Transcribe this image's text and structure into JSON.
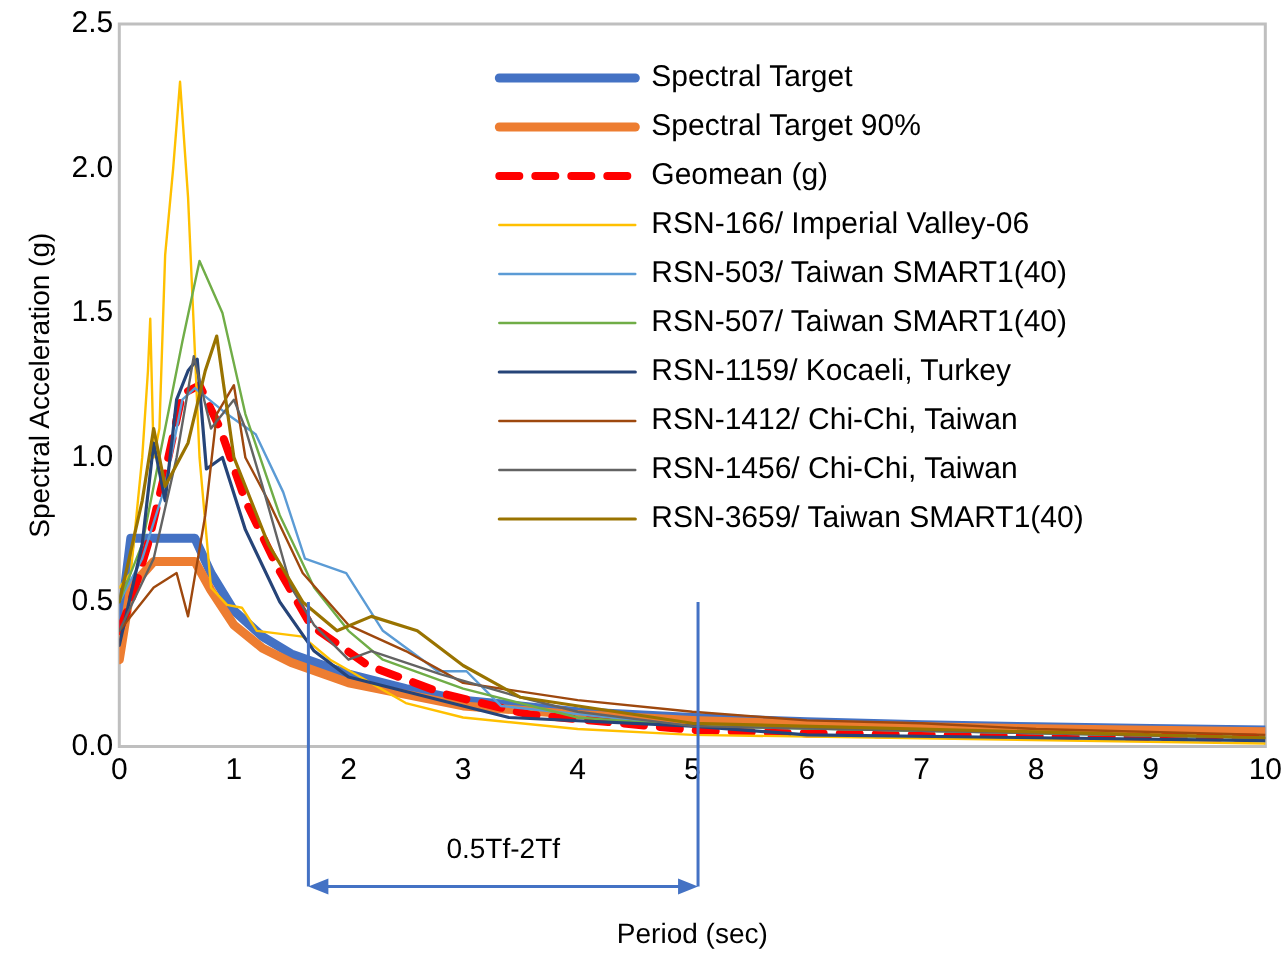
{
  "chart_data": {
    "type": "line",
    "xlabel": "Period (sec)",
    "ylabel": "Spectral Acceleration (g)",
    "xlim": [
      0,
      10
    ],
    "xticks": [
      0,
      1,
      2,
      3,
      4,
      5,
      6,
      7,
      8,
      9,
      10
    ],
    "ylim": [
      0,
      2.5
    ],
    "yticks": [
      {
        "value": 0,
        "label": "0.0"
      },
      {
        "value": 0.5,
        "label": "0.5"
      },
      {
        "value": 1,
        "label": "1.0"
      },
      {
        "value": 1.5,
        "label": "1.5"
      },
      {
        "value": 2,
        "label": "2.0"
      },
      {
        "value": 2.5,
        "label": "2.5"
      }
    ],
    "legend": "top right",
    "marker": "none",
    "ref_lines": [
      {
        "axis": "x",
        "value": 1.65,
        "color": "#4472c4"
      },
      {
        "axis": "x",
        "value": 5.05,
        "color": "#4472c4"
      }
    ],
    "annotations": [
      "0.5Tf-2Tf"
    ],
    "series": [
      {
        "name": "Spectral Target",
        "color": "#4472c4",
        "x": [
          0,
          0.1,
          0.66,
          0.8,
          1.0,
          1.25,
          1.5,
          2,
          2.5,
          3,
          4,
          5,
          6,
          7,
          8,
          9,
          10
        ],
        "values": [
          0.4,
          0.72,
          0.72,
          0.6,
          0.47,
          0.38,
          0.32,
          0.25,
          0.2,
          0.16,
          0.12,
          0.1,
          0.085,
          0.075,
          0.068,
          0.062,
          0.057
        ]
      },
      {
        "name": "Spectral Target 90%",
        "color": "#ed7d31",
        "x": [
          0,
          0.1,
          0.3,
          0.66,
          0.8,
          1.0,
          1.25,
          1.5,
          2,
          2.5,
          3,
          4,
          5,
          6,
          7,
          8,
          9,
          10
        ],
        "values": [
          0.3,
          0.55,
          0.64,
          0.64,
          0.54,
          0.42,
          0.34,
          0.29,
          0.22,
          0.18,
          0.14,
          0.11,
          0.09,
          0.077,
          0.068,
          0.061,
          0.056,
          0.051
        ]
      },
      {
        "name": "Geomean (g)",
        "color": "#ff0000",
        "line_style": "dashed",
        "x": [
          0,
          0.1,
          0.25,
          0.4,
          0.55,
          0.7,
          0.88,
          1.1,
          1.38,
          1.67,
          2.17,
          2.85,
          3.58,
          5.05,
          6,
          8,
          10
        ],
        "values": [
          0.4,
          0.5,
          0.7,
          0.95,
          1.22,
          1.25,
          1.1,
          0.85,
          0.62,
          0.42,
          0.28,
          0.18,
          0.11,
          0.055,
          0.045,
          0.035,
          0.03
        ]
      },
      {
        "name": "RSN-166/ Imperial Valley-06",
        "color": "#ffc000",
        "x": [
          0,
          0.1,
          0.2,
          0.25,
          0.27,
          0.3,
          0.35,
          0.4,
          0.47,
          0.53,
          0.6,
          0.7,
          0.8,
          0.94,
          1.07,
          1.2,
          1.6,
          1.84,
          2.5,
          3,
          4,
          5,
          10
        ],
        "values": [
          0.55,
          0.6,
          1.0,
          1.3,
          1.48,
          1.0,
          1.1,
          1.7,
          2.0,
          2.3,
          1.9,
          1.0,
          0.55,
          0.49,
          0.48,
          0.4,
          0.38,
          0.3,
          0.15,
          0.1,
          0.06,
          0.04,
          0.01
        ]
      },
      {
        "name": "RSN-503/ Taiwan SMART1(40)",
        "color": "#5b9bd5",
        "x": [
          0,
          0.2,
          0.4,
          0.55,
          0.66,
          0.94,
          1.19,
          1.43,
          1.62,
          1.98,
          2.3,
          2.78,
          3.03,
          3.33,
          5,
          10
        ],
        "values": [
          0.5,
          0.65,
          0.9,
          1.2,
          1.24,
          1.15,
          1.08,
          0.88,
          0.65,
          0.6,
          0.4,
          0.26,
          0.26,
          0.14,
          0.07,
          0.03
        ]
      },
      {
        "name": "RSN-507/ Taiwan SMART1(40)",
        "color": "#70ad47",
        "x": [
          0,
          0.2,
          0.4,
          0.55,
          0.7,
          0.9,
          1.1,
          1.4,
          1.7,
          2,
          2.3,
          3,
          4,
          5,
          10
        ],
        "values": [
          0.5,
          0.7,
          1.1,
          1.4,
          1.68,
          1.5,
          1.15,
          0.8,
          0.55,
          0.4,
          0.3,
          0.2,
          0.1,
          0.07,
          0.03
        ]
      },
      {
        "name": "RSN-1159/ Kocaeli, Turkey",
        "color": "#264478",
        "x": [
          0,
          0.2,
          0.3,
          0.4,
          0.5,
          0.6,
          0.68,
          0.76,
          0.9,
          1.1,
          1.4,
          1.7,
          2,
          3,
          3.4,
          5,
          6,
          10
        ],
        "values": [
          0.35,
          0.7,
          1.05,
          0.85,
          1.2,
          1.3,
          1.34,
          0.96,
          1.0,
          0.75,
          0.5,
          0.33,
          0.24,
          0.14,
          0.1,
          0.07,
          0.04,
          0.02
        ]
      },
      {
        "name": "RSN-1412/ Chi-Chi, Taiwan",
        "color": "#9e480e",
        "x": [
          0,
          0.3,
          0.5,
          0.6,
          0.75,
          0.85,
          1.0,
          1.1,
          1.3,
          1.6,
          2,
          2.5,
          3,
          4,
          5,
          6,
          7,
          8,
          10
        ],
        "values": [
          0.4,
          0.55,
          0.6,
          0.45,
          0.8,
          1.15,
          1.25,
          1.0,
          0.85,
          0.6,
          0.42,
          0.33,
          0.22,
          0.16,
          0.12,
          0.09,
          0.08,
          0.06,
          0.04
        ]
      },
      {
        "name": "RSN-1456/ Chi-Chi, Taiwan",
        "color": "#636363",
        "x": [
          0,
          0.3,
          0.5,
          0.65,
          0.8,
          1.0,
          1.1,
          1.25,
          1.5,
          1.7,
          2,
          2.2,
          2.8,
          3.5,
          4,
          5,
          10
        ],
        "values": [
          0.4,
          0.65,
          1.0,
          1.35,
          1.1,
          1.2,
          1.1,
          0.9,
          0.55,
          0.42,
          0.3,
          0.33,
          0.25,
          0.17,
          0.12,
          0.07,
          0.03
        ]
      },
      {
        "name": "RSN-3659/ Taiwan SMART1(40)",
        "color": "#997300",
        "x": [
          0,
          0.2,
          0.3,
          0.4,
          0.6,
          0.75,
          0.85,
          1.0,
          1.3,
          1.6,
          1.9,
          2.2,
          2.6,
          3,
          3.5,
          5,
          10
        ],
        "values": [
          0.5,
          0.85,
          1.1,
          0.9,
          1.05,
          1.3,
          1.42,
          1.0,
          0.7,
          0.5,
          0.4,
          0.45,
          0.4,
          0.28,
          0.17,
          0.08,
          0.03
        ]
      }
    ]
  }
}
